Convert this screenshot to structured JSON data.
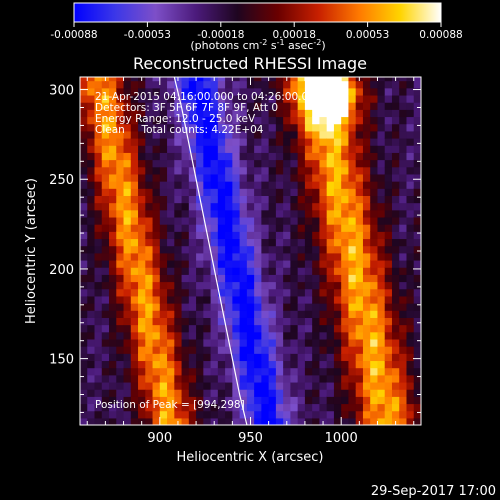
{
  "colors": {
    "background": "#000000",
    "foreground": "#ffffff",
    "colormap": [
      "#0000ff",
      "#3b37e8",
      "#7d4fc8",
      "#4b1a7a",
      "#1e0520",
      "#6a0000",
      "#c82000",
      "#ff7a00",
      "#ffd400",
      "#ffffff"
    ]
  },
  "colorbar": {
    "tick_labels": [
      "-0.00088",
      "-0.00053",
      "-0.00018",
      "0.00018",
      "0.00053",
      "0.00088"
    ],
    "unit_parts": [
      "(photons cm",
      "-2",
      " s",
      "-1",
      " asec",
      "-2",
      ")"
    ],
    "range": [
      -0.00088,
      0.00088
    ]
  },
  "chart_data": {
    "type": "heatmap",
    "title": "Reconstructed RHESSI Image",
    "xlabel": "Heliocentric X (arcsec)",
    "ylabel": "Heliocentric Y (arcsec)",
    "xlim": [
      856,
      1044
    ],
    "ylim": [
      113,
      307
    ],
    "xticks": [
      900,
      950,
      1000
    ],
    "yticks": [
      150,
      200,
      250,
      300
    ],
    "info_lines": [
      "21-Apr-2015 04:16:00.000 to 04:26:00.000",
      "Detectors: 3F 5F 6F 7F 8F 9F, Att 0",
      "Energy Range: 12.0 - 25.0 keV",
      "Clean     Total counts: 4.22E+04"
    ],
    "peak_text": "Position of Peak = [994,298]",
    "peak_position": [
      994,
      298
    ],
    "limb": [
      [
        908,
        307
      ],
      [
        912,
        290
      ],
      [
        920,
        250
      ],
      [
        928,
        210
      ],
      [
        936,
        170
      ],
      [
        944,
        130
      ],
      [
        948,
        113
      ]
    ]
  },
  "footer": {
    "timestamp": "29-Sep-2017 17:00"
  }
}
